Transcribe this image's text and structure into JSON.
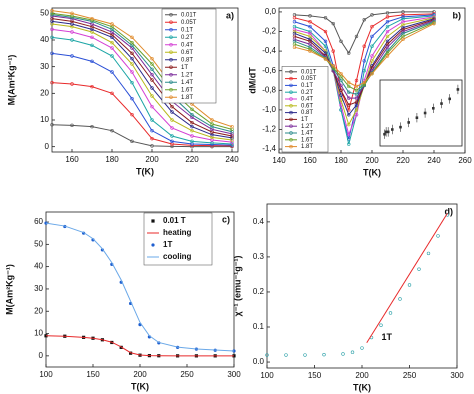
{
  "chart_data": [
    {
      "type": "line",
      "label": "a)",
      "xlabel": "T(K)",
      "ylabel": "M(Am²Kg⁻¹)",
      "x": [
        150,
        160,
        170,
        180,
        190,
        200,
        210,
        220,
        230,
        240
      ],
      "xlim": [
        150,
        243
      ],
      "ylim": [
        -2,
        52
      ],
      "xticks": [
        160,
        180,
        200,
        220,
        240
      ],
      "yticks": [
        0,
        10,
        20,
        30,
        40,
        50
      ],
      "legend": "upper right",
      "series": [
        {
          "name": "0.01T",
          "color": "#555555",
          "marker": "circle",
          "values": [
            8.2,
            8,
            7.5,
            6,
            2,
            0.3,
            0.1,
            0,
            0,
            0
          ]
        },
        {
          "name": "0.05T",
          "color": "#e8292a",
          "marker": "circle",
          "values": [
            24,
            23.5,
            22.5,
            20,
            12,
            3,
            1,
            0.5,
            0.4,
            0.3
          ]
        },
        {
          "name": "0.1T",
          "color": "#2a4fd6",
          "marker": "circle",
          "values": [
            35,
            34,
            32,
            28,
            18,
            6,
            2,
            1,
            0.8,
            0.6
          ]
        },
        {
          "name": "0.2T",
          "color": "#1ba5a5",
          "marker": "circle",
          "values": [
            41,
            40,
            38,
            34,
            24,
            10,
            4,
            2,
            1.4,
            1
          ]
        },
        {
          "name": "0.4T",
          "color": "#d43fd4",
          "marker": "circle",
          "values": [
            44,
            43,
            41,
            37,
            28,
            15,
            7,
            4,
            2.5,
            1.7
          ]
        },
        {
          "name": "0.6T",
          "color": "#b8b81a",
          "marker": "circle",
          "values": [
            46,
            45,
            43,
            39,
            31,
            19,
            10,
            6,
            3.5,
            2.5
          ]
        },
        {
          "name": "0.8T",
          "color": "#2a2a8a",
          "marker": "circle",
          "values": [
            47,
            46,
            44,
            41,
            33,
            22,
            13,
            7.5,
            4.5,
            3.3
          ]
        },
        {
          "name": "1T",
          "color": "#8a1a1a",
          "marker": "circle",
          "values": [
            48,
            47,
            45,
            42,
            35,
            25,
            15,
            9,
            5.5,
            4
          ]
        },
        {
          "name": "1.2T",
          "color": "#7a2a9a",
          "marker": "circle",
          "values": [
            49,
            48,
            46,
            43,
            37,
            27,
            17,
            11,
            6.5,
            4.8
          ]
        },
        {
          "name": "1.4T",
          "color": "#2a8a8a",
          "marker": "circle",
          "values": [
            49.5,
            48.5,
            47,
            44,
            38,
            29,
            19,
            12,
            7.5,
            5.6
          ]
        },
        {
          "name": "1.6T",
          "color": "#6aa02a",
          "marker": "circle",
          "values": [
            50,
            49,
            47.5,
            45,
            39,
            31,
            21,
            14,
            8.5,
            6.5
          ]
        },
        {
          "name": "1.8T",
          "color": "#e08a2a",
          "marker": "circle",
          "values": [
            51,
            50,
            48,
            46,
            41,
            33,
            23,
            16,
            10,
            7.5
          ]
        }
      ]
    },
    {
      "type": "line",
      "label": "b)",
      "xlabel": "T(K)",
      "ylabel": "dM/dT",
      "x": [
        150,
        160,
        170,
        175,
        180,
        185,
        190,
        195,
        200,
        210,
        220,
        240
      ],
      "xlim": [
        140,
        260
      ],
      "ylim": [
        -1.44,
        0.04
      ],
      "xticks": [
        140,
        160,
        180,
        200,
        220,
        240,
        260
      ],
      "yticks": [
        {
          "value": 0,
          "label": "0,0"
        },
        {
          "value": -0.2,
          "label": "-0,2"
        },
        {
          "value": -0.4,
          "label": "-0,4"
        },
        {
          "value": -0.6,
          "label": "-0,6"
        },
        {
          "value": -0.8,
          "label": "-0,8"
        },
        {
          "value": -1,
          "label": "-1,0"
        },
        {
          "value": -1.2,
          "label": "-1,2"
        },
        {
          "value": -1.4,
          "label": "-1,4"
        }
      ],
      "legend": "lower left",
      "series": [
        {
          "name": "0.01T",
          "color": "#555555",
          "marker": "circle",
          "values": [
            -0.03,
            -0.04,
            -0.06,
            -0.12,
            -0.3,
            -0.42,
            -0.25,
            -0.08,
            -0.03,
            -0.01,
            0,
            0
          ]
        },
        {
          "name": "0.05T",
          "color": "#e8292a",
          "marker": "circle",
          "values": [
            -0.06,
            -0.1,
            -0.2,
            -0.4,
            -0.8,
            -1.0,
            -0.7,
            -0.35,
            -0.15,
            -0.05,
            -0.03,
            -0.02
          ]
        },
        {
          "name": "0.1T",
          "color": "#2a4fd6",
          "marker": "circle",
          "values": [
            -0.1,
            -0.15,
            -0.3,
            -0.55,
            -1.0,
            -1.3,
            -0.95,
            -0.5,
            -0.25,
            -0.1,
            -0.05,
            -0.03
          ]
        },
        {
          "name": "0.2T",
          "color": "#1ba5a5",
          "marker": "circle",
          "values": [
            -0.15,
            -0.2,
            -0.35,
            -0.6,
            -1.0,
            -1.35,
            -1.05,
            -0.6,
            -0.35,
            -0.15,
            -0.07,
            -0.04
          ]
        },
        {
          "name": "0.4T",
          "color": "#d43fd4",
          "marker": "circle",
          "values": [
            -0.18,
            -0.22,
            -0.4,
            -0.6,
            -0.95,
            -1.25,
            -1.05,
            -0.7,
            -0.45,
            -0.2,
            -0.1,
            -0.05
          ]
        },
        {
          "name": "0.6T",
          "color": "#b8b81a",
          "marker": "circle",
          "values": [
            -0.2,
            -0.25,
            -0.4,
            -0.6,
            -0.9,
            -1.15,
            -1.0,
            -0.75,
            -0.5,
            -0.25,
            -0.13,
            -0.06
          ]
        },
        {
          "name": "0.8T",
          "color": "#2a2a8a",
          "marker": "circle",
          "values": [
            -0.22,
            -0.28,
            -0.42,
            -0.6,
            -0.85,
            -1.05,
            -0.95,
            -0.75,
            -0.55,
            -0.3,
            -0.16,
            -0.07
          ]
        },
        {
          "name": "1T",
          "color": "#8a1a1a",
          "marker": "circle",
          "values": [
            -0.25,
            -0.3,
            -0.45,
            -0.6,
            -0.8,
            -0.95,
            -0.92,
            -0.75,
            -0.57,
            -0.33,
            -0.18,
            -0.08
          ]
        },
        {
          "name": "1.2T",
          "color": "#7a2a9a",
          "marker": "circle",
          "values": [
            -0.28,
            -0.33,
            -0.46,
            -0.6,
            -0.75,
            -0.88,
            -0.88,
            -0.75,
            -0.6,
            -0.36,
            -0.2,
            -0.09
          ]
        },
        {
          "name": "1.4T",
          "color": "#2a8a8a",
          "marker": "circle",
          "values": [
            -0.3,
            -0.36,
            -0.47,
            -0.58,
            -0.7,
            -0.82,
            -0.84,
            -0.75,
            -0.62,
            -0.4,
            -0.22,
            -0.1
          ]
        },
        {
          "name": "1.6T",
          "color": "#6aa02a",
          "marker": "circle",
          "values": [
            -0.33,
            -0.38,
            -0.48,
            -0.57,
            -0.66,
            -0.76,
            -0.8,
            -0.74,
            -0.63,
            -0.42,
            -0.25,
            -0.11
          ]
        },
        {
          "name": "1.8T",
          "color": "#e08a2a",
          "marker": "circle",
          "values": [
            -0.36,
            -0.4,
            -0.48,
            -0.55,
            -0.63,
            -0.72,
            -0.76,
            -0.72,
            -0.63,
            -0.45,
            -0.28,
            -0.12
          ]
        }
      ]
    },
    {
      "type": "line",
      "label": "c)",
      "xlabel": "T(K)",
      "ylabel": "M(Am²Kg⁻¹)",
      "x": [
        100,
        120,
        140,
        150,
        160,
        170,
        180,
        190,
        200,
        210,
        220,
        240,
        260,
        280,
        300
      ],
      "xlim": [
        100,
        300
      ],
      "ylim": [
        -5,
        64.5
      ],
      "xticks": [
        100,
        150,
        200,
        250,
        300
      ],
      "yticks": [
        0,
        10,
        20,
        30,
        40,
        50,
        60
      ],
      "legend": "upper right",
      "series": [
        {
          "name": "0.01 T",
          "color": "#111111",
          "marker": "square",
          "line": false,
          "values": [
            9,
            8.8,
            8.3,
            7.9,
            7.2,
            6,
            3.8,
            1.2,
            0.3,
            0.1,
            0.05,
            0,
            0,
            0,
            0
          ]
        },
        {
          "name": "heating",
          "color": "#e8292a",
          "values": [
            9,
            8.8,
            8.3,
            7.9,
            7.2,
            6.1,
            4,
            1.4,
            0.4,
            0.1,
            0.05,
            0,
            0,
            0,
            0
          ]
        },
        {
          "name": "1T",
          "color": "#1f5fd0",
          "marker": "dot",
          "line": false,
          "values": [
            59.5,
            58,
            55,
            52,
            47.5,
            41,
            33,
            23.5,
            14,
            8.5,
            5.8,
            3.8,
            3,
            2.5,
            2.2
          ]
        },
        {
          "name": "cooling",
          "color": "#6aa8e8",
          "values": [
            59.5,
            58.2,
            55.3,
            52.5,
            48,
            41.8,
            34,
            24.5,
            15,
            9,
            6,
            3.9,
            3.1,
            2.6,
            2.2
          ]
        }
      ]
    },
    {
      "type": "line",
      "label": "d)",
      "xlabel": "T(K)",
      "ylabel": "χ⁻¹ (emu⁻¹g⁻¹)",
      "annotation": "1T",
      "x": [
        100,
        120,
        140,
        160,
        180,
        190,
        200,
        210,
        220,
        230,
        240,
        250,
        260,
        270,
        280,
        290
      ],
      "xlim": [
        100,
        300
      ],
      "ylim": [
        -0.017,
        0.451
      ],
      "xticks": [
        100,
        150,
        200,
        250,
        300
      ],
      "yticks": [
        {
          "value": 0,
          "label": "0.0"
        },
        0.1,
        0.2,
        0.3,
        0.4
      ],
      "series": [
        {
          "color": "#2aa0a8",
          "marker": "circle",
          "line": false,
          "values": [
            0.02,
            0.02,
            0.02,
            0.021,
            0.023,
            0.028,
            0.04,
            0.07,
            0.105,
            0.14,
            0.18,
            0.22,
            0.265,
            0.31,
            0.36,
            0.42
          ]
        },
        {
          "color": "#e8292a",
          "x": [
            205,
            290
          ],
          "values": [
            0.055,
            0.425
          ]
        }
      ]
    },
    {
      "type": "scatter",
      "x": [
        0.01,
        0.05,
        0.1,
        0.2,
        0.4,
        0.6,
        0.8,
        1,
        1.2,
        1.4,
        1.6,
        1.8
      ],
      "xlim": [
        -0.1,
        1.9
      ],
      "ylim": [
        180,
        194
      ],
      "color": "#333333",
      "values": [
        182.5,
        183,
        183,
        183.5,
        184,
        185,
        186,
        187,
        188,
        189,
        190,
        192
      ],
      "errors": [
        1,
        1,
        1,
        1,
        1,
        1,
        1,
        1,
        1,
        1,
        1,
        1
      ]
    }
  ]
}
